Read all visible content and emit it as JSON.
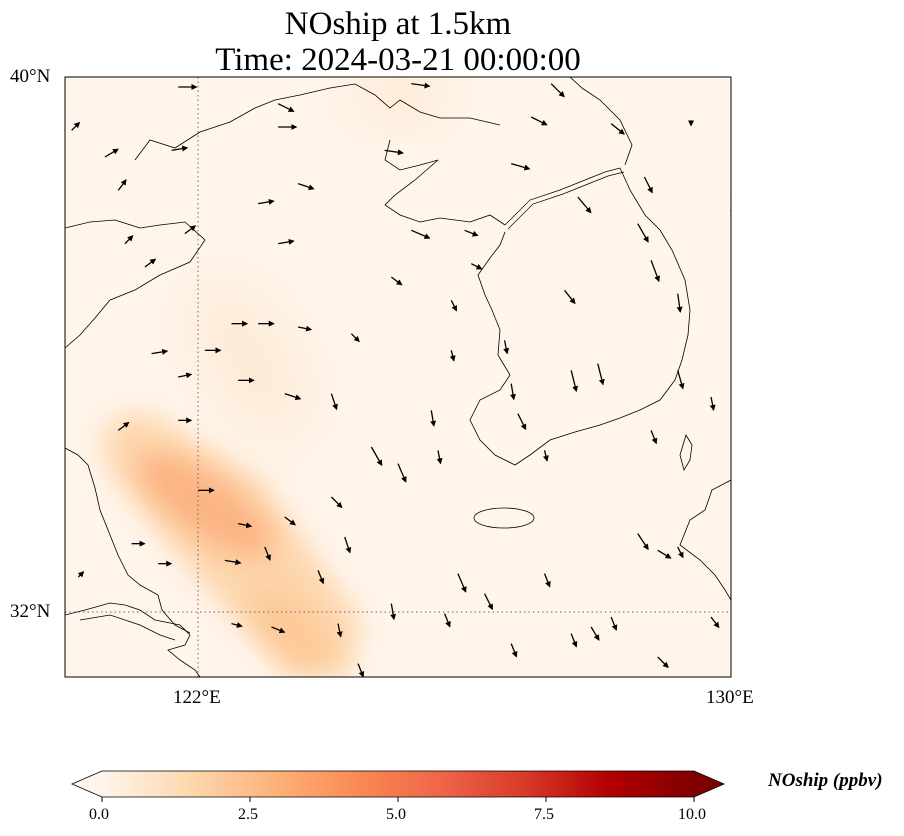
{
  "title": {
    "line1": "NOship at 1.5km",
    "line2": "Time: 2024-03-21 00:00:00"
  },
  "map": {
    "extent": {
      "lon": [
        120,
        130
      ],
      "lat": [
        31,
        40
      ]
    },
    "lat_ticks": [
      {
        "value": 40,
        "label": "40°N"
      },
      {
        "value": 32,
        "label": "32°N"
      }
    ],
    "lon_ticks": [
      {
        "value": 122,
        "label": "122°E"
      },
      {
        "value": 130,
        "label": "130°E"
      }
    ],
    "gridlines": {
      "lon": 122,
      "lat": 32
    },
    "background_color": "#fff5eb",
    "plume_color": "#fdb47c"
  },
  "wind_vectors": [
    [
      121.7,
      39.85,
      7,
      0
    ],
    [
      123.2,
      39.6,
      6,
      -3
    ],
    [
      125.2,
      39.9,
      7,
      -1
    ],
    [
      127.3,
      39.9,
      5,
      -5
    ],
    [
      120.1,
      39.2,
      3,
      3
    ],
    [
      120.6,
      38.8,
      5,
      3
    ],
    [
      121.6,
      38.9,
      6,
      1
    ],
    [
      123.2,
      39.25,
      7,
      0
    ],
    [
      124.8,
      38.9,
      7,
      -1
    ],
    [
      126.7,
      38.7,
      7,
      -2
    ],
    [
      127.0,
      39.4,
      6,
      -3
    ],
    [
      128.2,
      39.3,
      5,
      -4
    ],
    [
      128.7,
      38.5,
      3,
      -6
    ],
    [
      129.4,
      39.35,
      0,
      -2
    ],
    [
      123.5,
      38.4,
      6,
      -2
    ],
    [
      120.8,
      38.3,
      3,
      4
    ],
    [
      122.9,
      38.1,
      6,
      1
    ],
    [
      125.2,
      37.7,
      7,
      -3
    ],
    [
      126.0,
      37.7,
      5,
      -2
    ],
    [
      127.7,
      38.2,
      5,
      -6
    ],
    [
      128.6,
      37.8,
      4,
      -7
    ],
    [
      130.0,
      38.2,
      1,
      -7
    ],
    [
      120.9,
      37.5,
      3,
      3
    ],
    [
      121.8,
      37.65,
      4,
      3
    ],
    [
      123.2,
      37.5,
      6,
      1
    ],
    [
      121.2,
      37.15,
      4,
      3
    ],
    [
      124.9,
      37.0,
      4,
      -3
    ],
    [
      126.1,
      37.2,
      4,
      -2
    ],
    [
      128.8,
      37.25,
      3,
      -8
    ],
    [
      129.2,
      36.75,
      1,
      -7
    ],
    [
      127.5,
      36.8,
      4,
      -5
    ],
    [
      125.8,
      36.65,
      2,
      -4
    ],
    [
      122.5,
      36.3,
      6,
      0
    ],
    [
      122.9,
      36.3,
      6,
      0
    ],
    [
      123.5,
      36.25,
      5,
      -1
    ],
    [
      124.3,
      36.15,
      3,
      -3
    ],
    [
      126.6,
      36.05,
      1,
      -5
    ],
    [
      121.3,
      35.85,
      6,
      1
    ],
    [
      122.1,
      35.9,
      6,
      0
    ],
    [
      125.8,
      35.9,
      1,
      -4
    ],
    [
      127.6,
      35.6,
      2,
      -8
    ],
    [
      128.0,
      35.7,
      2,
      -8
    ],
    [
      129.2,
      35.6,
      2,
      -7
    ],
    [
      121.7,
      35.5,
      5,
      1
    ],
    [
      122.6,
      35.45,
      6,
      0
    ],
    [
      123.3,
      35.25,
      6,
      -2
    ],
    [
      124.0,
      35.25,
      2,
      -6
    ],
    [
      126.7,
      35.4,
      1,
      -6
    ],
    [
      129.7,
      35.2,
      1,
      -5
    ],
    [
      120.8,
      34.7,
      4,
      3
    ],
    [
      121.7,
      34.85,
      5,
      0
    ],
    [
      125.5,
      35.0,
      1,
      -6
    ],
    [
      126.8,
      34.95,
      3,
      -6
    ],
    [
      128.8,
      34.7,
      2,
      -5
    ],
    [
      124.6,
      34.45,
      4,
      -7
    ],
    [
      125.0,
      34.2,
      3,
      -7
    ],
    [
      125.6,
      34.4,
      1,
      -5
    ],
    [
      127.2,
      34.4,
      1,
      -4
    ],
    [
      122.0,
      33.8,
      6,
      0
    ],
    [
      122.6,
      33.3,
      5,
      -1
    ],
    [
      123.3,
      33.4,
      4,
      -3
    ],
    [
      124.0,
      33.7,
      4,
      -4
    ],
    [
      123.0,
      32.95,
      2,
      -5
    ],
    [
      124.2,
      33.1,
      2,
      -6
    ],
    [
      121.0,
      33.0,
      5,
      0
    ],
    [
      121.4,
      32.7,
      5,
      0
    ],
    [
      122.4,
      32.75,
      6,
      -1
    ],
    [
      123.8,
      32.6,
      2,
      -5
    ],
    [
      125.9,
      32.55,
      3,
      -7
    ],
    [
      127.2,
      32.55,
      2,
      -5
    ],
    [
      128.6,
      33.15,
      4,
      -6
    ],
    [
      128.9,
      32.9,
      5,
      -3
    ],
    [
      129.2,
      32.95,
      2,
      -4
    ],
    [
      120.2,
      32.5,
      2,
      2
    ],
    [
      122.5,
      31.8,
      4,
      -1
    ],
    [
      123.1,
      31.75,
      5,
      -2
    ],
    [
      124.1,
      31.8,
      1,
      -5
    ],
    [
      124.9,
      32.1,
      1,
      -6
    ],
    [
      126.3,
      32.25,
      3,
      -6
    ],
    [
      125.7,
      31.95,
      2,
      -5
    ],
    [
      127.6,
      31.65,
      2,
      -5
    ],
    [
      127.9,
      31.75,
      3,
      -5
    ],
    [
      128.2,
      31.9,
      2,
      -5
    ],
    [
      129.7,
      31.9,
      3,
      -4
    ],
    [
      126.7,
      31.5,
      2,
      -5
    ],
    [
      128.9,
      31.3,
      4,
      -4
    ],
    [
      124.4,
      31.2,
      2,
      -5
    ]
  ],
  "colorbar": {
    "label": "NOship (ppbv)",
    "ticks": [
      "0.0",
      "2.5",
      "5.0",
      "7.5",
      "10.0"
    ],
    "range": [
      0,
      10
    ],
    "extend": "both",
    "colors": [
      "#fff5eb",
      "#fdd9b0",
      "#fdb47c",
      "#fb8a55",
      "#ef6548",
      "#d73a2a",
      "#b30000",
      "#7f0000"
    ]
  }
}
